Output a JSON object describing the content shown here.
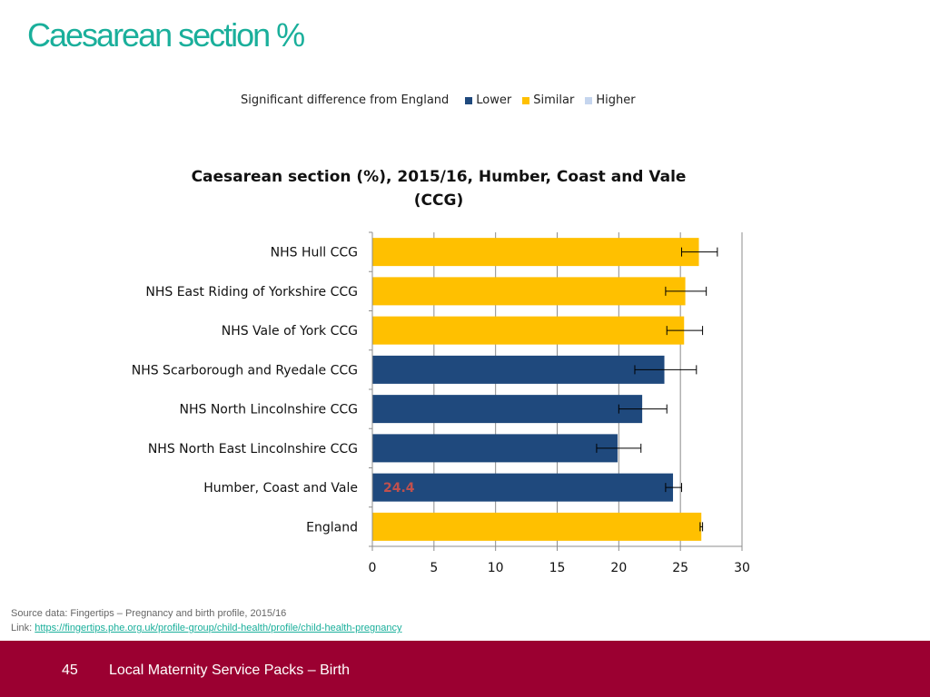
{
  "slide": {
    "title": "Caesarean section %"
  },
  "legend": {
    "title": "Significant difference from England",
    "items": [
      {
        "label": "Lower",
        "color": "#1f497d"
      },
      {
        "label": "Similar",
        "color": "#ffc000"
      },
      {
        "label": "Higher",
        "color": "#c5d5ee"
      }
    ]
  },
  "chart_data": {
    "type": "bar",
    "orientation": "horizontal",
    "title_line1": "Caesarean section (%), 2015/16, Humber, Coast and Vale",
    "title_line2": "(CCG)",
    "categories": [
      "NHS Hull CCG",
      "NHS East Riding of Yorkshire CCG",
      "NHS Vale of York CCG",
      "NHS Scarborough and Ryedale CCG",
      "NHS North Lincolnshire CCG",
      "NHS North East Lincolnshire CCG",
      "Humber, Coast and Vale",
      "England"
    ],
    "values": [
      26.5,
      25.4,
      25.3,
      23.7,
      21.9,
      19.9,
      24.4,
      26.7
    ],
    "ci_lower": [
      25.1,
      23.8,
      23.9,
      21.3,
      20.0,
      18.2,
      23.8,
      26.6
    ],
    "ci_upper": [
      28.0,
      27.1,
      26.8,
      26.3,
      23.9,
      21.8,
      25.1,
      26.8
    ],
    "significance": [
      "Similar",
      "Similar",
      "Similar",
      "Lower",
      "Lower",
      "Lower",
      "Lower",
      "Similar"
    ],
    "colors": {
      "Lower": "#1f497d",
      "Similar": "#ffc000",
      "Higher": "#c5d5ee"
    },
    "data_labels": [
      {
        "category": "Humber, Coast and Vale",
        "text": "24.4",
        "color": "#c0504d"
      }
    ],
    "xlim": [
      0,
      30
    ],
    "xticks": [
      0,
      5,
      10,
      15,
      20,
      25,
      30
    ],
    "grid": true
  },
  "source": {
    "text": "Source data: Fingertips – Pregnancy and birth profile, 2015/16",
    "link_prefix": "Link: ",
    "link_text": "https://fingertips.phe.org.uk/profile-group/child-health/profile/child-health-pregnancy"
  },
  "footer": {
    "page_number": "45",
    "text": "Local Maternity Service Packs – Birth"
  }
}
